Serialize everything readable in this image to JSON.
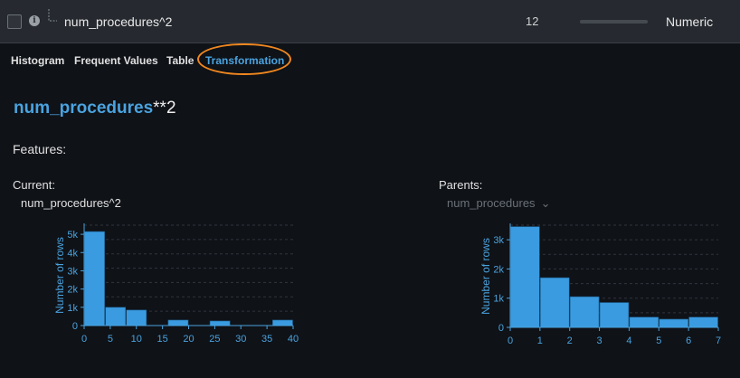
{
  "header": {
    "feature_name": "num_procedures^2",
    "count": "12",
    "type": "Numeric",
    "bar_fill_fraction": 0.0
  },
  "tabs": [
    {
      "label": "Histogram",
      "active": false
    },
    {
      "label": "Frequent Values",
      "active": false
    },
    {
      "label": "Table",
      "active": false
    },
    {
      "label": "Transformation",
      "active": true
    }
  ],
  "transformation": {
    "formula_var": "num_procedures",
    "formula_op": "**2",
    "features_label": "Features:",
    "current_label": "Current:",
    "current_feature": "num_procedures^2",
    "parents_label": "Parents:",
    "parents_selected": "num_procedures"
  },
  "colors": {
    "accent": "#4aa3df",
    "highlight": "#f0871f",
    "header_bg": "#262a30",
    "bar": "#3a9be0"
  },
  "chart_data": [
    {
      "type": "bar",
      "ylabel": "Number of rows",
      "x_ticks": [
        0,
        5,
        10,
        15,
        20,
        25,
        30,
        35,
        40
      ],
      "y_ticks": [
        {
          "v": 0,
          "l": "0"
        },
        {
          "v": 1000,
          "l": "1k"
        },
        {
          "v": 2000,
          "l": "2k"
        },
        {
          "v": 3000,
          "l": "3k"
        },
        {
          "v": 4000,
          "l": "4k"
        },
        {
          "v": 5000,
          "l": "5k"
        }
      ],
      "xlim": [
        0,
        40
      ],
      "ylim": [
        0,
        5500
      ],
      "bins": [
        {
          "x0": 0,
          "x1": 4,
          "v": 5150
        },
        {
          "x0": 4,
          "x1": 8,
          "v": 1000
        },
        {
          "x0": 8,
          "x1": 12,
          "v": 850
        },
        {
          "x0": 16,
          "x1": 20,
          "v": 300
        },
        {
          "x0": 24,
          "x1": 28,
          "v": 250
        },
        {
          "x0": 36,
          "x1": 40,
          "v": 300
        }
      ]
    },
    {
      "type": "bar",
      "ylabel": "Number of rows",
      "x_ticks": [
        0,
        1,
        2,
        3,
        4,
        5,
        6,
        7
      ],
      "y_ticks": [
        {
          "v": 0,
          "l": "0"
        },
        {
          "v": 1000,
          "l": "1k"
        },
        {
          "v": 2000,
          "l": "2k"
        },
        {
          "v": 3000,
          "l": "3k"
        }
      ],
      "xlim": [
        0,
        7
      ],
      "ylim": [
        0,
        3500
      ],
      "bins": [
        {
          "x0": 0,
          "x1": 1,
          "v": 3450
        },
        {
          "x0": 1,
          "x1": 2,
          "v": 1700
        },
        {
          "x0": 2,
          "x1": 3,
          "v": 1050
        },
        {
          "x0": 3,
          "x1": 4,
          "v": 850
        },
        {
          "x0": 4,
          "x1": 5,
          "v": 350
        },
        {
          "x0": 5,
          "x1": 6,
          "v": 280
        },
        {
          "x0": 6,
          "x1": 7,
          "v": 350
        }
      ]
    }
  ]
}
